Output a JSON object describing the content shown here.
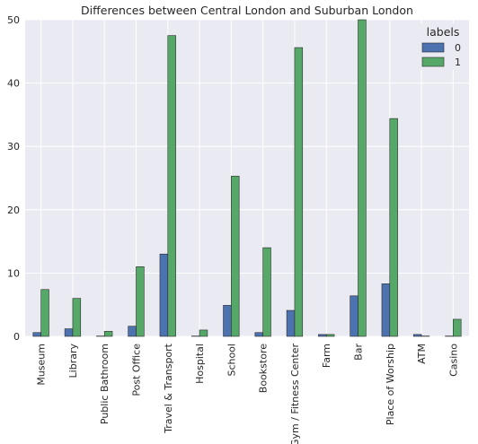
{
  "chart_data": {
    "type": "bar",
    "title": "Differences between Central London and Suburban London",
    "xlabel": "",
    "ylabel": "",
    "categories": [
      "Museum",
      "Library",
      "Public Bathroom",
      "Post Office",
      "Travel & Transport",
      "Hospital",
      "School",
      "Bookstore",
      "Gym / Fitness Center",
      "Farm",
      "Bar",
      "Place of Worship",
      "ATM",
      "Casino"
    ],
    "series": [
      {
        "name": "0",
        "color": "#4c72b0",
        "values": [
          0.6,
          1.2,
          0.05,
          1.6,
          13.0,
          0.05,
          4.9,
          0.6,
          4.1,
          0.3,
          6.4,
          8.3,
          0.3,
          0.05
        ]
      },
      {
        "name": "1",
        "color": "#55a868",
        "values": [
          7.4,
          6.0,
          0.8,
          11.0,
          47.5,
          1.0,
          25.3,
          14.0,
          45.6,
          0.3,
          50.0,
          34.4,
          0.05,
          2.7
        ]
      }
    ],
    "ylim": [
      0,
      50
    ],
    "yticks": [
      0,
      10,
      20,
      30,
      40,
      50
    ],
    "grid": true,
    "background": "#eaeaf2",
    "legend": {
      "title": "labels",
      "placement": "top-right"
    }
  }
}
